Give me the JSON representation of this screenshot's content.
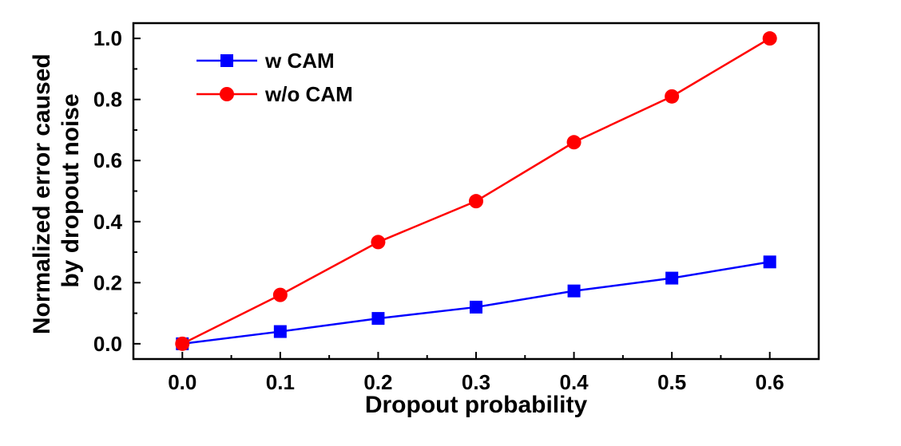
{
  "chart_data": {
    "type": "line",
    "xlabel": "Dropout probability",
    "ylabel": [
      "Normalized error caused",
      "by dropout noise"
    ],
    "x": [
      0.0,
      0.1,
      0.2,
      0.3,
      0.4,
      0.5,
      0.6
    ],
    "xticks": [
      "0.0",
      "0.1",
      "0.2",
      "0.3",
      "0.4",
      "0.5",
      "0.6"
    ],
    "yticks": [
      "0.0",
      "0.2",
      "0.4",
      "0.6",
      "0.8",
      "1.0"
    ],
    "xlim": [
      -0.05,
      0.65
    ],
    "ylim": [
      -0.05,
      1.05
    ],
    "grid": false,
    "legend_position": "top-left",
    "series": [
      {
        "name": "w CAM",
        "color": "#0000ff",
        "marker": "square",
        "values": [
          0.0,
          0.04,
          0.083,
          0.12,
          0.173,
          0.215,
          0.268
        ]
      },
      {
        "name": "w/o CAM",
        "color": "#ff0000",
        "marker": "circle",
        "values": [
          0.0,
          0.16,
          0.333,
          0.467,
          0.66,
          0.81,
          1.0
        ]
      }
    ]
  }
}
